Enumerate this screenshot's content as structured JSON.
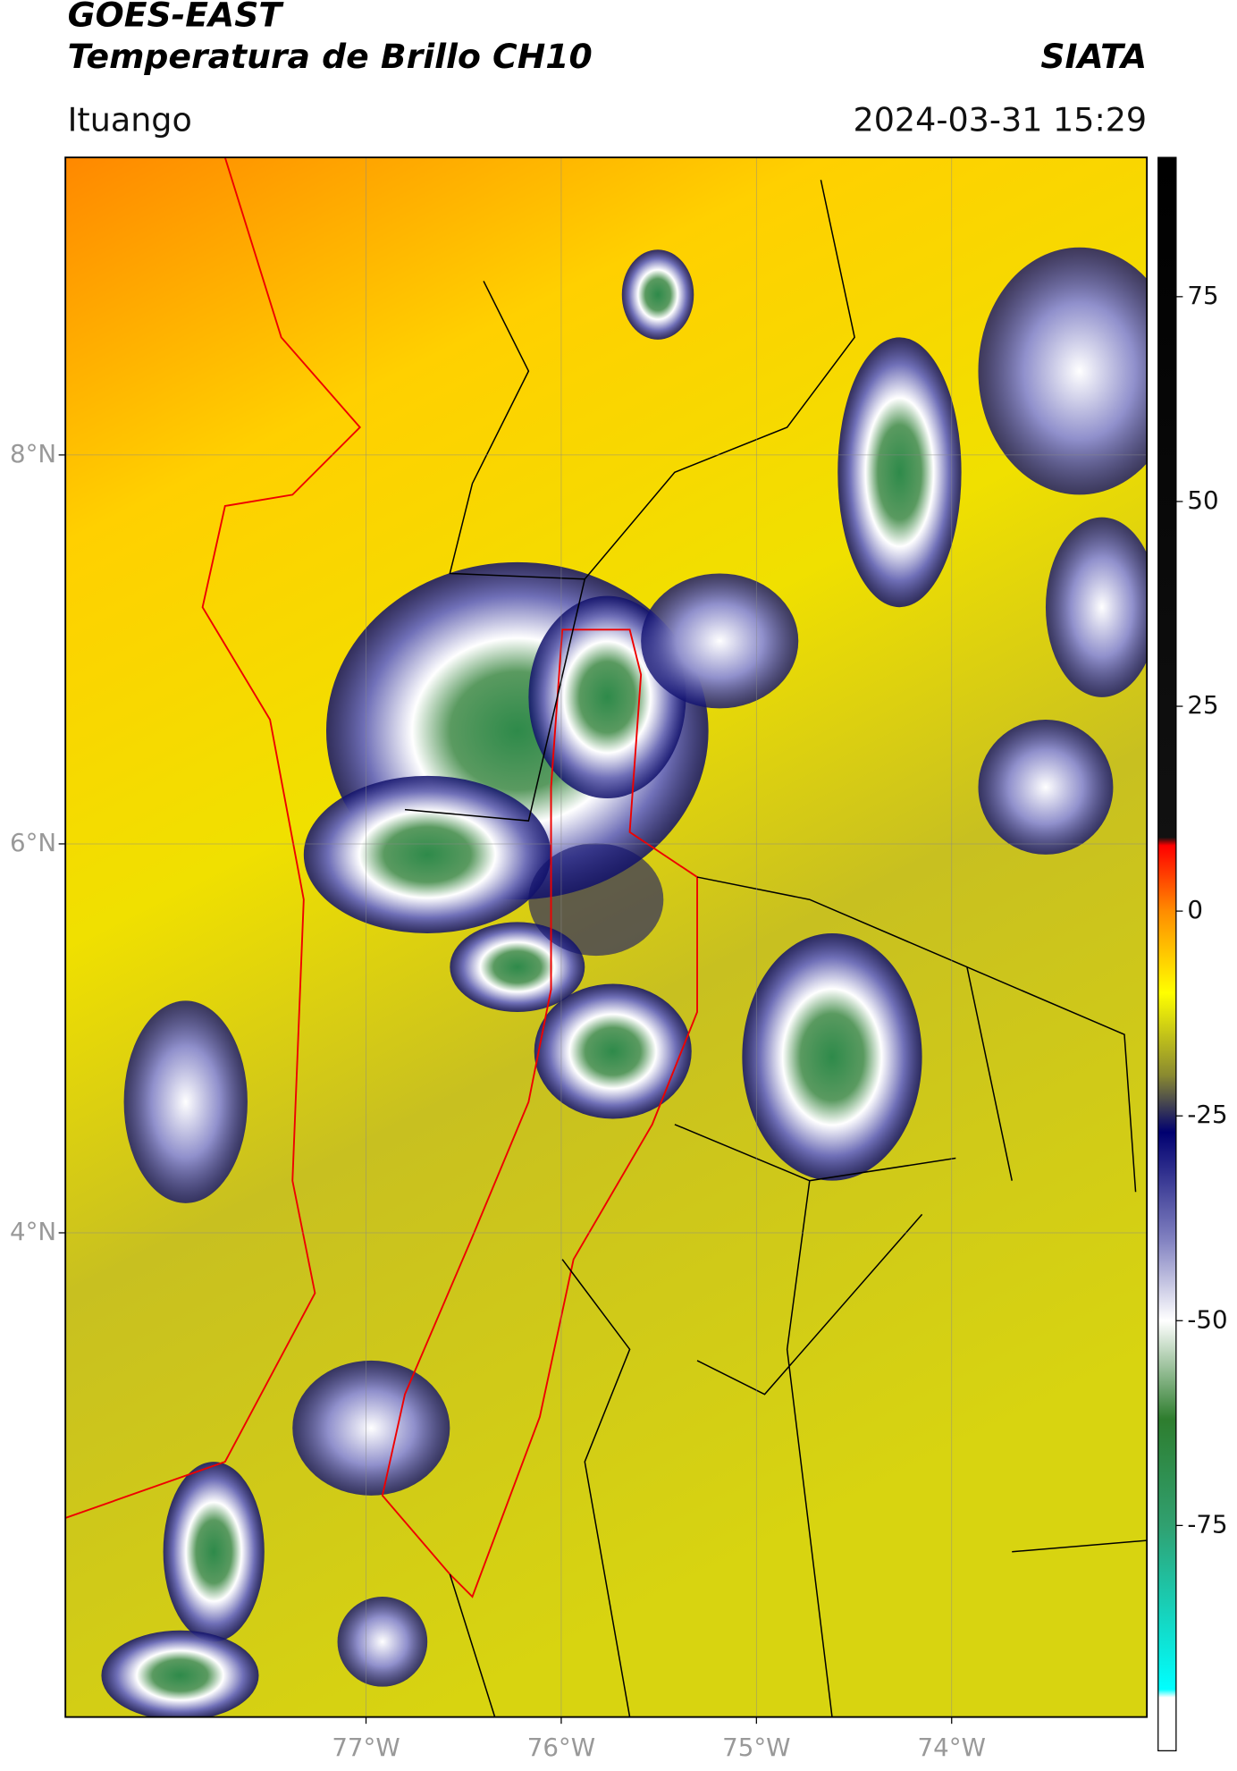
{
  "header": {
    "title": "GOES-EAST",
    "subtitle": "Temperatura de Brillo CH10",
    "brand": "SIATA",
    "location": "Ituango",
    "datetime": "2024-03-31 15:29"
  },
  "map": {
    "xlim": [
      -78.54,
      -73.0
    ],
    "ylim": [
      1.51,
      9.53
    ],
    "xticks": [
      {
        "value": -77,
        "label": "77°W"
      },
      {
        "value": -76,
        "label": "76°W"
      },
      {
        "value": -75,
        "label": "75°W"
      },
      {
        "value": -74,
        "label": "74°W"
      }
    ],
    "yticks": [
      {
        "value": 8,
        "label": "8°N"
      },
      {
        "value": 6,
        "label": "6°N"
      },
      {
        "value": 4,
        "label": "4°N"
      }
    ],
    "grid": true
  },
  "colorbar": {
    "range": [
      -102.5,
      92
    ],
    "ticks": [
      75,
      50,
      25,
      0,
      -25,
      -50,
      -75
    ],
    "stops": [
      {
        "value": 92,
        "color": "#000000"
      },
      {
        "value": 9,
        "color": "#111111"
      },
      {
        "value": 8,
        "color": "#ff0000"
      },
      {
        "value": 0,
        "color": "#ff8c00"
      },
      {
        "value": -10,
        "color": "#ffff00"
      },
      {
        "value": -20,
        "color": "#8a8a30"
      },
      {
        "value": -27,
        "color": "#000070"
      },
      {
        "value": -40,
        "color": "#8080c0"
      },
      {
        "value": -50,
        "color": "#ffffff"
      },
      {
        "value": -62,
        "color": "#2e7d2e"
      },
      {
        "value": -75,
        "color": "#30a070"
      },
      {
        "value": -95,
        "color": "#00ffff"
      },
      {
        "value": -96,
        "color": "#ffffff"
      },
      {
        "value": -102.5,
        "color": "#ffffff"
      }
    ]
  }
}
